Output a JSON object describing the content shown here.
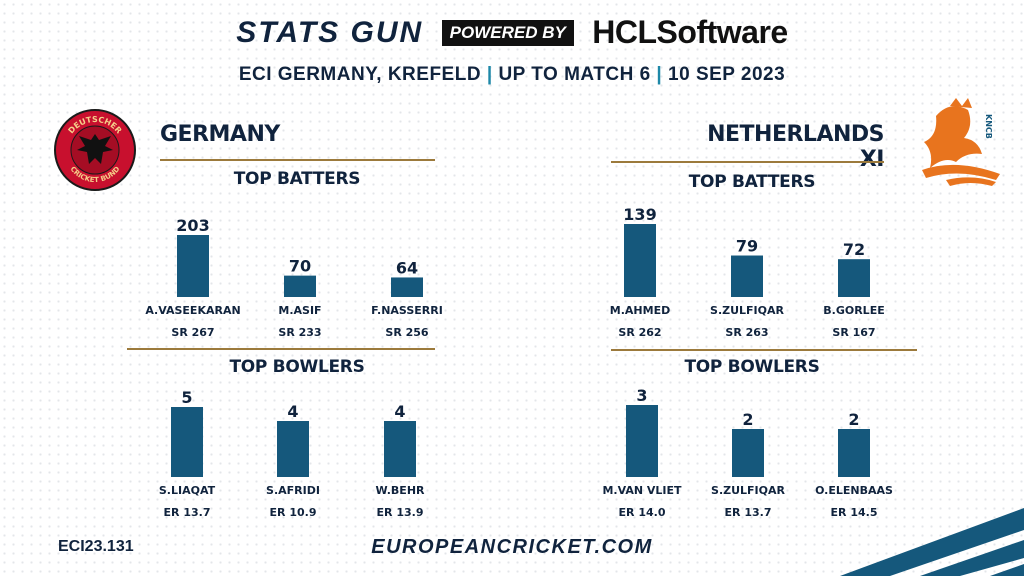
{
  "header": {
    "brand": "STATS GUN",
    "powered_by": "POWERED BY",
    "sponsor": "HCLSoftware",
    "venue": "ECI GERMANY, KREFELD",
    "match": "UP TO MATCH 6",
    "date": "10 SEP 2023",
    "separator": "|"
  },
  "teams": {
    "germany": {
      "name": "GERMANY",
      "logo_text_top": "DEUTSCHER",
      "logo_text_bottom": "CRICKET BUND"
    },
    "netherlands": {
      "name": "NETHERLANDS XI",
      "logo_text": "KNCB"
    }
  },
  "sections": {
    "batters": "TOP BATTERS",
    "bowlers": "TOP BOWLERS"
  },
  "colors": {
    "bar": "#15587c",
    "gold": "#9c7a3c",
    "navy": "#10233d",
    "accent": "#1e88a8",
    "orange": "#e8741e"
  },
  "chart_data": [
    {
      "type": "bar",
      "team": "GERMANY",
      "title": "TOP BATTERS",
      "categories": [
        "A.VASEEKARAN",
        "M.ASIF",
        "F.NASSERRI"
      ],
      "values": [
        203,
        70,
        64
      ],
      "sublabels": [
        "SR 267",
        "SR 233",
        "SR 256"
      ]
    },
    {
      "type": "bar",
      "team": "NETHERLANDS XI",
      "title": "TOP BATTERS",
      "categories": [
        "M.AHMED",
        "S.ZULFIQAR",
        "B.GORLEE"
      ],
      "values": [
        139,
        79,
        72
      ],
      "sublabels": [
        "SR 262",
        "SR 263",
        "SR 167"
      ]
    },
    {
      "type": "bar",
      "team": "GERMANY",
      "title": "TOP BOWLERS",
      "categories": [
        "S.LIAQAT",
        "S.AFRIDI",
        "W.BEHR"
      ],
      "values": [
        5,
        4,
        4
      ],
      "sublabels": [
        "ER 13.7",
        "ER 10.9",
        "ER 13.9"
      ]
    },
    {
      "type": "bar",
      "team": "NETHERLANDS XI",
      "title": "TOP BOWLERS",
      "categories": [
        "M.VAN VLIET",
        "S.ZULFIQAR",
        "O.ELENBAAS"
      ],
      "values": [
        3,
        2,
        2
      ],
      "sublabels": [
        "ER 14.0",
        "ER 13.7",
        "ER 14.5"
      ]
    }
  ],
  "footer": {
    "code": "ECI23.131",
    "website": "EUROPEANCRICKET.COM"
  }
}
